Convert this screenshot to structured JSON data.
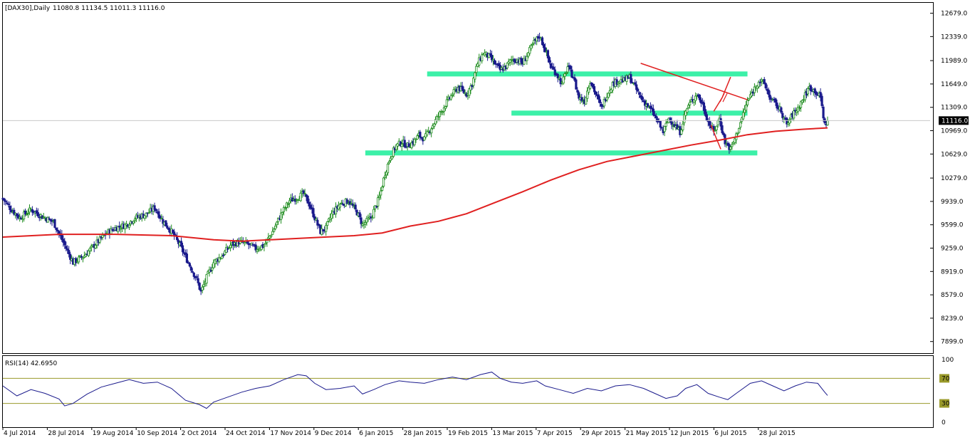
{
  "window": {
    "symbol": "[DAX30],Daily",
    "ohlc": "11080.8 11134.5 11011.3 11116.0",
    "current_price": "11116.0"
  },
  "colors": {
    "background": "#ffffff",
    "bull_candle": "#1e8c1e",
    "bear_candle": "#1a1a8c",
    "moving_average": "#e02020",
    "zones": "#3cf0a8",
    "trendline": "#e02020",
    "rsi_line": "#1a1a8c",
    "rsi_levels": "#9a9a2a"
  },
  "price_axis": {
    "ticks": [
      "12679.0",
      "12339.0",
      "11989.0",
      "11649.0",
      "11309.0",
      "10969.0",
      "10629.0",
      "10279.0",
      "9939.0",
      "9599.0",
      "9259.0",
      "8919.0",
      "8579.0",
      "8239.0",
      "7899.0"
    ]
  },
  "rsi_panel": {
    "label": "RSI(14) 42.6950",
    "axis_ticks": [
      "100",
      "70",
      "30",
      "0"
    ]
  },
  "time_axis": {
    "labels": [
      "4 Jul 2014",
      "28 Jul 2014",
      "19 Aug 2014",
      "10 Sep 2014",
      "2 Oct 2014",
      "24 Oct 2014",
      "17 Nov 2014",
      "9 Dec 2014",
      "6 Jan 2015",
      "28 Jan 2015",
      "19 Feb 2015",
      "13 Mar 2015",
      "7 Apr 2015",
      "29 Apr 2015",
      "21 May 2015",
      "12 Jun 2015",
      "6 Jul 2015",
      "28 Jul 2015"
    ]
  },
  "chart_data": {
    "type": "candlestick",
    "x_range": [
      "4 Jul 2014",
      "10 Aug 2015"
    ],
    "y_range": [
      7730,
      12830
    ],
    "close_path": [
      [
        0,
        9980
      ],
      [
        6,
        9820
      ],
      [
        12,
        9700
      ],
      [
        20,
        9820
      ],
      [
        28,
        9720
      ],
      [
        36,
        9640
      ],
      [
        44,
        9300
      ],
      [
        50,
        9050
      ],
      [
        58,
        9150
      ],
      [
        66,
        9320
      ],
      [
        74,
        9480
      ],
      [
        80,
        9550
      ],
      [
        88,
        9600
      ],
      [
        94,
        9700
      ],
      [
        102,
        9750
      ],
      [
        108,
        9850
      ],
      [
        114,
        9650
      ],
      [
        120,
        9500
      ],
      [
        126,
        9300
      ],
      [
        132,
        9050
      ],
      [
        138,
        8800
      ],
      [
        141,
        8620
      ],
      [
        145,
        8830
      ],
      [
        150,
        9050
      ],
      [
        156,
        9150
      ],
      [
        162,
        9300
      ],
      [
        168,
        9350
      ],
      [
        174,
        9320
      ],
      [
        180,
        9250
      ],
      [
        186,
        9300
      ],
      [
        192,
        9500
      ],
      [
        198,
        9750
      ],
      [
        204,
        9950
      ],
      [
        210,
        10000
      ],
      [
        214,
        10050
      ],
      [
        218,
        9900
      ],
      [
        222,
        9700
      ],
      [
        226,
        9500
      ],
      [
        230,
        9550
      ],
      [
        234,
        9750
      ],
      [
        240,
        9900
      ],
      [
        246,
        9950
      ],
      [
        252,
        9780
      ],
      [
        256,
        9600
      ],
      [
        262,
        9700
      ],
      [
        268,
        10000
      ],
      [
        272,
        10350
      ],
      [
        276,
        10600
      ],
      [
        280,
        10750
      ],
      [
        284,
        10800
      ],
      [
        288,
        10750
      ],
      [
        292,
        10800
      ],
      [
        296,
        10900
      ],
      [
        300,
        10850
      ],
      [
        306,
        11050
      ],
      [
        312,
        11250
      ],
      [
        318,
        11450
      ],
      [
        324,
        11600
      ],
      [
        330,
        11500
      ],
      [
        334,
        11650
      ],
      [
        338,
        11950
      ],
      [
        342,
        12100
      ],
      [
        346,
        12050
      ],
      [
        350,
        11950
      ],
      [
        354,
        11850
      ],
      [
        358,
        11900
      ],
      [
        362,
        12000
      ],
      [
        366,
        12000
      ],
      [
        370,
        11950
      ],
      [
        374,
        12100
      ],
      [
        378,
        12250
      ],
      [
        382,
        12350
      ],
      [
        386,
        12150
      ],
      [
        390,
        11900
      ],
      [
        394,
        11800
      ],
      [
        398,
        11650
      ],
      [
        402,
        11900
      ],
      [
        406,
        11750
      ],
      [
        410,
        11450
      ],
      [
        414,
        11400
      ],
      [
        418,
        11700
      ],
      [
        422,
        11500
      ],
      [
        426,
        11300
      ],
      [
        430,
        11500
      ],
      [
        434,
        11650
      ],
      [
        438,
        11700
      ],
      [
        442,
        11700
      ],
      [
        446,
        11750
      ],
      [
        450,
        11600
      ],
      [
        454,
        11450
      ],
      [
        458,
        11350
      ],
      [
        462,
        11250
      ],
      [
        466,
        11100
      ],
      [
        470,
        10950
      ],
      [
        474,
        11150
      ],
      [
        478,
        11050
      ],
      [
        482,
        10950
      ],
      [
        486,
        11250
      ],
      [
        490,
        11400
      ],
      [
        494,
        11500
      ],
      [
        498,
        11350
      ],
      [
        502,
        11100
      ],
      [
        506,
        10950
      ],
      [
        510,
        11150
      ],
      [
        514,
        10800
      ],
      [
        518,
        10700
      ],
      [
        522,
        10900
      ],
      [
        526,
        11150
      ],
      [
        530,
        11400
      ],
      [
        534,
        11550
      ],
      [
        538,
        11700
      ],
      [
        542,
        11650
      ],
      [
        546,
        11450
      ],
      [
        550,
        11350
      ],
      [
        554,
        11250
      ],
      [
        558,
        11050
      ],
      [
        562,
        11200
      ],
      [
        566,
        11300
      ],
      [
        570,
        11450
      ],
      [
        574,
        11600
      ],
      [
        578,
        11550
      ],
      [
        582,
        11450
      ],
      [
        585,
        11050
      ],
      [
        587,
        11116
      ]
    ],
    "moving_average_path": [
      [
        0,
        9420
      ],
      [
        40,
        9460
      ],
      [
        80,
        9460
      ],
      [
        120,
        9440
      ],
      [
        150,
        9380
      ],
      [
        170,
        9360
      ],
      [
        190,
        9380
      ],
      [
        220,
        9410
      ],
      [
        250,
        9440
      ],
      [
        270,
        9480
      ],
      [
        290,
        9580
      ],
      [
        310,
        9650
      ],
      [
        330,
        9760
      ],
      [
        350,
        9920
      ],
      [
        370,
        10080
      ],
      [
        390,
        10250
      ],
      [
        410,
        10400
      ],
      [
        430,
        10520
      ],
      [
        450,
        10600
      ],
      [
        470,
        10680
      ],
      [
        490,
        10760
      ],
      [
        510,
        10830
      ],
      [
        530,
        10910
      ],
      [
        550,
        10960
      ],
      [
        570,
        10990
      ],
      [
        587,
        11010
      ]
    ],
    "rsi_path": [
      [
        0,
        58
      ],
      [
        10,
        42
      ],
      [
        20,
        52
      ],
      [
        30,
        46
      ],
      [
        40,
        37
      ],
      [
        44,
        26
      ],
      [
        50,
        30
      ],
      [
        60,
        45
      ],
      [
        70,
        56
      ],
      [
        80,
        62
      ],
      [
        90,
        68
      ],
      [
        100,
        62
      ],
      [
        110,
        64
      ],
      [
        120,
        54
      ],
      [
        130,
        35
      ],
      [
        140,
        28
      ],
      [
        145,
        22
      ],
      [
        150,
        32
      ],
      [
        160,
        40
      ],
      [
        170,
        48
      ],
      [
        180,
        54
      ],
      [
        190,
        58
      ],
      [
        200,
        68
      ],
      [
        210,
        76
      ],
      [
        216,
        74
      ],
      [
        222,
        62
      ],
      [
        230,
        52
      ],
      [
        240,
        54
      ],
      [
        250,
        58
      ],
      [
        256,
        45
      ],
      [
        264,
        52
      ],
      [
        272,
        60
      ],
      [
        282,
        66
      ],
      [
        290,
        64
      ],
      [
        300,
        62
      ],
      [
        310,
        68
      ],
      [
        320,
        72
      ],
      [
        330,
        68
      ],
      [
        340,
        76
      ],
      [
        348,
        80
      ],
      [
        354,
        70
      ],
      [
        362,
        64
      ],
      [
        370,
        62
      ],
      [
        380,
        66
      ],
      [
        386,
        58
      ],
      [
        396,
        52
      ],
      [
        406,
        46
      ],
      [
        416,
        54
      ],
      [
        426,
        50
      ],
      [
        436,
        58
      ],
      [
        446,
        60
      ],
      [
        456,
        54
      ],
      [
        464,
        46
      ],
      [
        472,
        38
      ],
      [
        480,
        42
      ],
      [
        486,
        54
      ],
      [
        494,
        60
      ],
      [
        502,
        46
      ],
      [
        510,
        40
      ],
      [
        516,
        36
      ],
      [
        522,
        46
      ],
      [
        532,
        62
      ],
      [
        540,
        66
      ],
      [
        548,
        58
      ],
      [
        556,
        50
      ],
      [
        564,
        58
      ],
      [
        572,
        64
      ],
      [
        580,
        62
      ],
      [
        585,
        48
      ],
      [
        587,
        42.695
      ]
    ],
    "rsi_levels": [
      70,
      30
    ],
    "zones": [
      {
        "x0": 302,
        "x1": 530,
        "y": 11800
      },
      {
        "x0": 362,
        "x1": 530,
        "y": 11230
      },
      {
        "x0": 258,
        "x1": 537,
        "y": 10650
      }
    ],
    "trendline": {
      "x0": 454,
      "y0": 11950,
      "x1": 530,
      "y1": 11420
    },
    "projections": [
      {
        "points": [
          [
            506,
            11250
          ],
          [
            512,
            11450
          ],
          [
            518,
            11750
          ]
        ]
      },
      {
        "points": [
          [
            504,
            11050
          ],
          [
            508,
            10850
          ],
          [
            511,
            10700
          ]
        ]
      }
    ]
  }
}
